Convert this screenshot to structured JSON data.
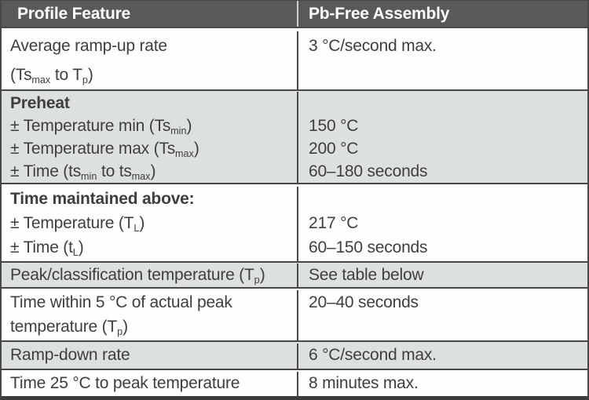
{
  "colors": {
    "header_bg": "#58595b",
    "header_text": "#ffffff",
    "shaded_row_bg": "#dde0e1",
    "row_bg": "#fefefe",
    "border": "#47484a",
    "border_heavy": "#3b3c3e",
    "text": "#3d3e40",
    "header_divider": "#cdd0d1"
  },
  "table": {
    "header": {
      "col1": "Profile Feature",
      "col2": "Pb-Free Assembly"
    },
    "rows": [
      {
        "feature": [
          {
            "segments": [
              {
                "text": "Average ramp-up rate"
              }
            ]
          },
          {
            "segments": [
              {
                "text": "(Ts"
              },
              {
                "text": "max",
                "sub": true
              },
              {
                "text": " to T"
              },
              {
                "text": "p",
                "sub": true
              },
              {
                "text": ")"
              }
            ]
          }
        ],
        "values": [
          {
            "segments": [
              {
                "text": "3 °C/second max."
              }
            ]
          }
        ]
      },
      {
        "feature": [
          {
            "bold": true,
            "segments": [
              {
                "text": "Preheat"
              }
            ]
          },
          {
            "segments": [
              {
                "text": "± Temperature min (Ts"
              },
              {
                "text": "min",
                "sub": true
              },
              {
                "text": ")"
              }
            ]
          },
          {
            "segments": [
              {
                "text": "± Temperature max (Ts"
              },
              {
                "text": "max",
                "sub": true
              },
              {
                "text": ")"
              }
            ]
          },
          {
            "segments": [
              {
                "text": "± Time (ts"
              },
              {
                "text": "min",
                "sub": true
              },
              {
                "text": " to ts"
              },
              {
                "text": "max",
                "sub": true
              },
              {
                "text": ")"
              }
            ]
          }
        ],
        "values": [
          {
            "segments": []
          },
          {
            "segments": [
              {
                "text": "150 °C"
              }
            ]
          },
          {
            "segments": [
              {
                "text": "200 °C"
              }
            ]
          },
          {
            "segments": [
              {
                "text": "60–180 seconds"
              }
            ]
          }
        ]
      },
      {
        "feature": [
          {
            "bold": true,
            "segments": [
              {
                "text": "Time maintained above:"
              }
            ]
          },
          {
            "segments": [
              {
                "text": "± Temperature (T"
              },
              {
                "text": "L",
                "sub": true
              },
              {
                "text": ")"
              }
            ]
          },
          {
            "segments": [
              {
                "text": "± Time (t"
              },
              {
                "text": "L",
                "sub": true
              },
              {
                "text": ")"
              }
            ]
          }
        ],
        "values": [
          {
            "segments": []
          },
          {
            "segments": [
              {
                "text": "217 °C"
              }
            ]
          },
          {
            "segments": [
              {
                "text": "60–150 seconds"
              }
            ]
          }
        ]
      },
      {
        "feature": [
          {
            "segments": [
              {
                "text": "Peak/classification temperature (T"
              },
              {
                "text": "p",
                "sub": true
              },
              {
                "text": ")"
              }
            ]
          }
        ],
        "values": [
          {
            "segments": [
              {
                "text": "See table below"
              }
            ]
          }
        ]
      },
      {
        "feature": [
          {
            "segments": [
              {
                "text": "Time within 5 °C of actual peak"
              }
            ]
          },
          {
            "segments": [
              {
                "text": "temperature (T"
              },
              {
                "text": "p",
                "sub": true
              },
              {
                "text": ")"
              }
            ]
          }
        ],
        "values": [
          {
            "segments": [
              {
                "text": "20–40 seconds"
              }
            ]
          }
        ]
      },
      {
        "feature": [
          {
            "segments": [
              {
                "text": "Ramp-down rate"
              }
            ]
          }
        ],
        "values": [
          {
            "segments": [
              {
                "text": "6 °C/second max."
              }
            ]
          }
        ]
      },
      {
        "feature": [
          {
            "segments": [
              {
                "text": "Time 25 °C to peak temperature"
              }
            ]
          }
        ],
        "values": [
          {
            "segments": [
              {
                "text": "8 minutes max."
              }
            ]
          }
        ]
      }
    ]
  }
}
